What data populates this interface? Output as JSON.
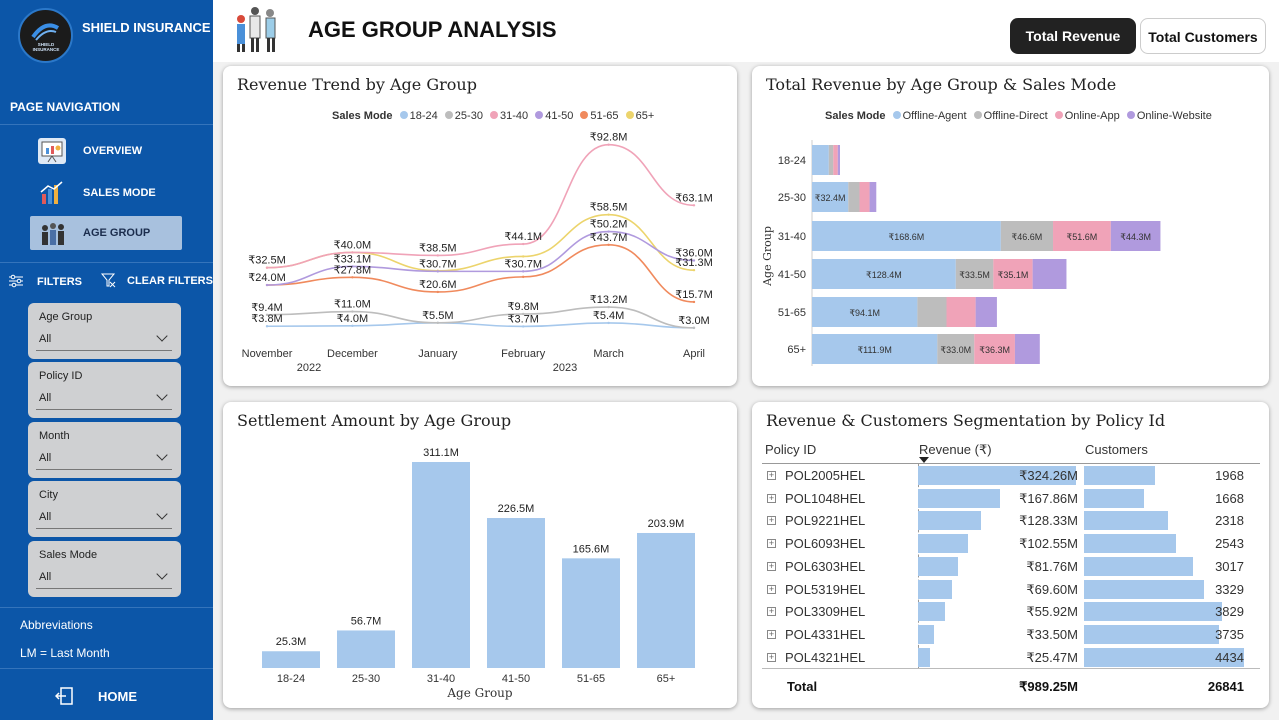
{
  "brand": {
    "name": "SHIELD INSURANCE",
    "logo_text": "SHIELD INSURANCE"
  },
  "nav": {
    "heading": "PAGE NAVIGATION",
    "items": [
      {
        "label": "OVERVIEW",
        "icon": "presentation-icon"
      },
      {
        "label": "SALES MODE",
        "icon": "bar-chart-icon"
      },
      {
        "label": "AGE GROUP",
        "icon": "people-icon"
      }
    ]
  },
  "filters": {
    "heading": "FILTERS",
    "clear_label": "CLEAR FILTERS",
    "items": [
      {
        "label": "Age Group",
        "value": "All"
      },
      {
        "label": "Policy ID",
        "value": "All"
      },
      {
        "label": "Month",
        "value": "All"
      },
      {
        "label": "City",
        "value": "All"
      },
      {
        "label": "Sales Mode",
        "value": "All"
      }
    ]
  },
  "abbreviations": {
    "heading": "Abbreviations",
    "lm": "LM = Last Month"
  },
  "home_label": "HOME",
  "page_title": "AGE GROUP ANALYSIS",
  "toggle": {
    "active": "Total Revenue",
    "inactive": "Total Customers"
  },
  "colors": {
    "sidebar": "#0c56a8",
    "bar": "#a6c8ec",
    "age": {
      "18-24": "#a6c8ec",
      "25-30": "#bdbdbd",
      "31-40": "#f0a3b8",
      "41-50": "#b09ade",
      "51-65": "#f08a5d",
      "65+": "#ecd46c"
    },
    "mode": {
      "Offline-Agent": "#a6c8ec",
      "Offline-Direct": "#bdbdbd",
      "Online-App": "#f0a3b8",
      "Online-Website": "#b09ade"
    }
  },
  "chart_data": [
    {
      "title": "Revenue Trend by Age Group",
      "type": "line",
      "legend_title": "Sales Mode",
      "x": [
        "November",
        "December",
        "January",
        "February",
        "March",
        "April"
      ],
      "years": [
        "2022",
        "2023"
      ],
      "series": [
        {
          "name": "18-24",
          "values": [
            3.8,
            4.0,
            5.5,
            3.7,
            5.4,
            3.0
          ],
          "labels": [
            "₹3.8M",
            "₹4.0M",
            "₹5.5M",
            "₹3.7M",
            "₹5.4M",
            "₹3.0M"
          ]
        },
        {
          "name": "25-30",
          "values": [
            9.4,
            11.0,
            5.5,
            9.8,
            13.2,
            3.0
          ],
          "labels": [
            "₹9.4M",
            "₹11.0M",
            "",
            "₹9.8M",
            "₹13.2M",
            ""
          ]
        },
        {
          "name": "31-40",
          "values": [
            32.5,
            40.0,
            38.5,
            44.1,
            92.8,
            63.1
          ],
          "labels": [
            "₹32.5M",
            "₹40.0M",
            "₹38.5M",
            "₹44.1M",
            "₹92.8M",
            "₹63.1M"
          ]
        },
        {
          "name": "41-50",
          "values": [
            24.0,
            33.1,
            30.7,
            30.7,
            50.2,
            36.0
          ],
          "labels": [
            "₹24.0M",
            "₹33.1M",
            "₹30.7M",
            "₹30.7M",
            "₹50.2M",
            "₹36.0M"
          ]
        },
        {
          "name": "51-65",
          "values": [
            24.0,
            27.8,
            20.6,
            28.0,
            43.7,
            15.7
          ],
          "labels": [
            "",
            "₹27.8M",
            "₹20.6M",
            "",
            "₹43.7M",
            "₹15.7M"
          ]
        },
        {
          "name": "65+",
          "values": [
            32.5,
            40.0,
            31.0,
            38.0,
            58.5,
            31.3
          ],
          "labels": [
            "",
            "",
            "",
            "",
            "₹58.5M",
            "₹31.3M"
          ]
        }
      ]
    },
    {
      "title": "Total Revenue by Age Group & Sales Mode",
      "type": "bar",
      "orientation": "horizontal",
      "stacked": true,
      "legend_title": "Sales Mode",
      "ylabel": "Age Group",
      "categories": [
        "18-24",
        "25-30",
        "31-40",
        "41-50",
        "51-65",
        "65+"
      ],
      "series": [
        {
          "name": "Offline-Agent",
          "values": [
            15,
            32.4,
            168.6,
            128.4,
            94.1,
            111.9
          ],
          "labels": [
            "",
            "₹32.4M",
            "₹168.6M",
            "₹128.4M",
            "₹94.1M",
            "₹111.9M"
          ]
        },
        {
          "name": "Offline-Direct",
          "values": [
            4,
            10,
            46.6,
            33.5,
            26,
            33.0
          ],
          "labels": [
            "",
            "",
            "₹46.6M",
            "₹33.5M",
            "",
            "₹33.0M"
          ]
        },
        {
          "name": "Online-App",
          "values": [
            4,
            9,
            51.6,
            35.1,
            26,
            36.3
          ],
          "labels": [
            "",
            "",
            "₹51.6M",
            "₹35.1M",
            "",
            "₹36.3M"
          ]
        },
        {
          "name": "Online-Website",
          "values": [
            2,
            6,
            44.3,
            30.2,
            19,
            22.2
          ],
          "labels": [
            "",
            "",
            "₹44.3M",
            "",
            "",
            ""
          ]
        }
      ]
    },
    {
      "title": "Settlement Amount by Age Group",
      "type": "bar",
      "xlabel": "Age Group",
      "categories": [
        "18-24",
        "25-30",
        "31-40",
        "41-50",
        "51-65",
        "65+"
      ],
      "values": [
        25.3,
        56.7,
        311.1,
        226.5,
        165.6,
        203.9
      ],
      "labels": [
        "25.3M",
        "56.7M",
        "311.1M",
        "226.5M",
        "165.6M",
        "203.9M"
      ]
    },
    {
      "title": "Revenue & Customers Segmentation by Policy Id",
      "type": "table",
      "columns": [
        "Policy ID",
        "Revenue (₹)",
        "Customers"
      ],
      "rows": [
        {
          "id": "POL2005HEL",
          "revenue": 324.26,
          "revenue_label": "₹324.26M",
          "customers": 1968
        },
        {
          "id": "POL1048HEL",
          "revenue": 167.86,
          "revenue_label": "₹167.86M",
          "customers": 1668
        },
        {
          "id": "POL9221HEL",
          "revenue": 128.33,
          "revenue_label": "₹128.33M",
          "customers": 2318
        },
        {
          "id": "POL6093HEL",
          "revenue": 102.55,
          "revenue_label": "₹102.55M",
          "customers": 2543
        },
        {
          "id": "POL6303HEL",
          "revenue": 81.76,
          "revenue_label": "₹81.76M",
          "customers": 3017
        },
        {
          "id": "POL5319HEL",
          "revenue": 69.6,
          "revenue_label": "₹69.60M",
          "customers": 3329
        },
        {
          "id": "POL3309HEL",
          "revenue": 55.92,
          "revenue_label": "₹55.92M",
          "customers": 3829
        },
        {
          "id": "POL4331HEL",
          "revenue": 33.5,
          "revenue_label": "₹33.50M",
          "customers": 3735
        },
        {
          "id": "POL4321HEL",
          "revenue": 25.47,
          "revenue_label": "₹25.47M",
          "customers": 4434
        }
      ],
      "total": {
        "label": "Total",
        "revenue_label": "₹989.25M",
        "customers": "26841"
      }
    }
  ]
}
